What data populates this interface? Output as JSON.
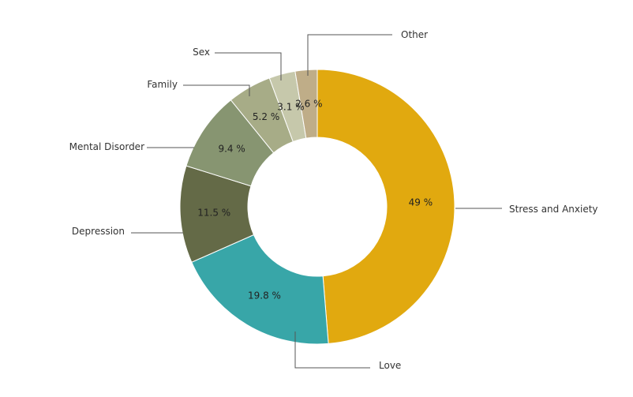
{
  "chart_data": {
    "type": "pie",
    "variant": "donut",
    "title": "",
    "slices": [
      {
        "label": "Stress and Anxiety",
        "value": 49,
        "value_label": "49 %",
        "color": "#e1a90f"
      },
      {
        "label": "Love",
        "value": 19.8,
        "value_label": "19.8 %",
        "color": "#38a6a8"
      },
      {
        "label": "Depression",
        "value": 11.5,
        "value_label": "11.5 %",
        "color": "#646a47"
      },
      {
        "label": "Mental Disorder",
        "value": 9.4,
        "value_label": "9.4 %",
        "color": "#879571"
      },
      {
        "label": "Family",
        "value": 5.2,
        "value_label": "5.2 %",
        "color": "#a7ac87"
      },
      {
        "label": "Sex",
        "value": 3.1,
        "value_label": "3.1 %",
        "color": "#c6c8ab"
      },
      {
        "label": "Other",
        "value": 2.6,
        "value_label": "2.6 %",
        "color": "#bfad88"
      }
    ]
  }
}
